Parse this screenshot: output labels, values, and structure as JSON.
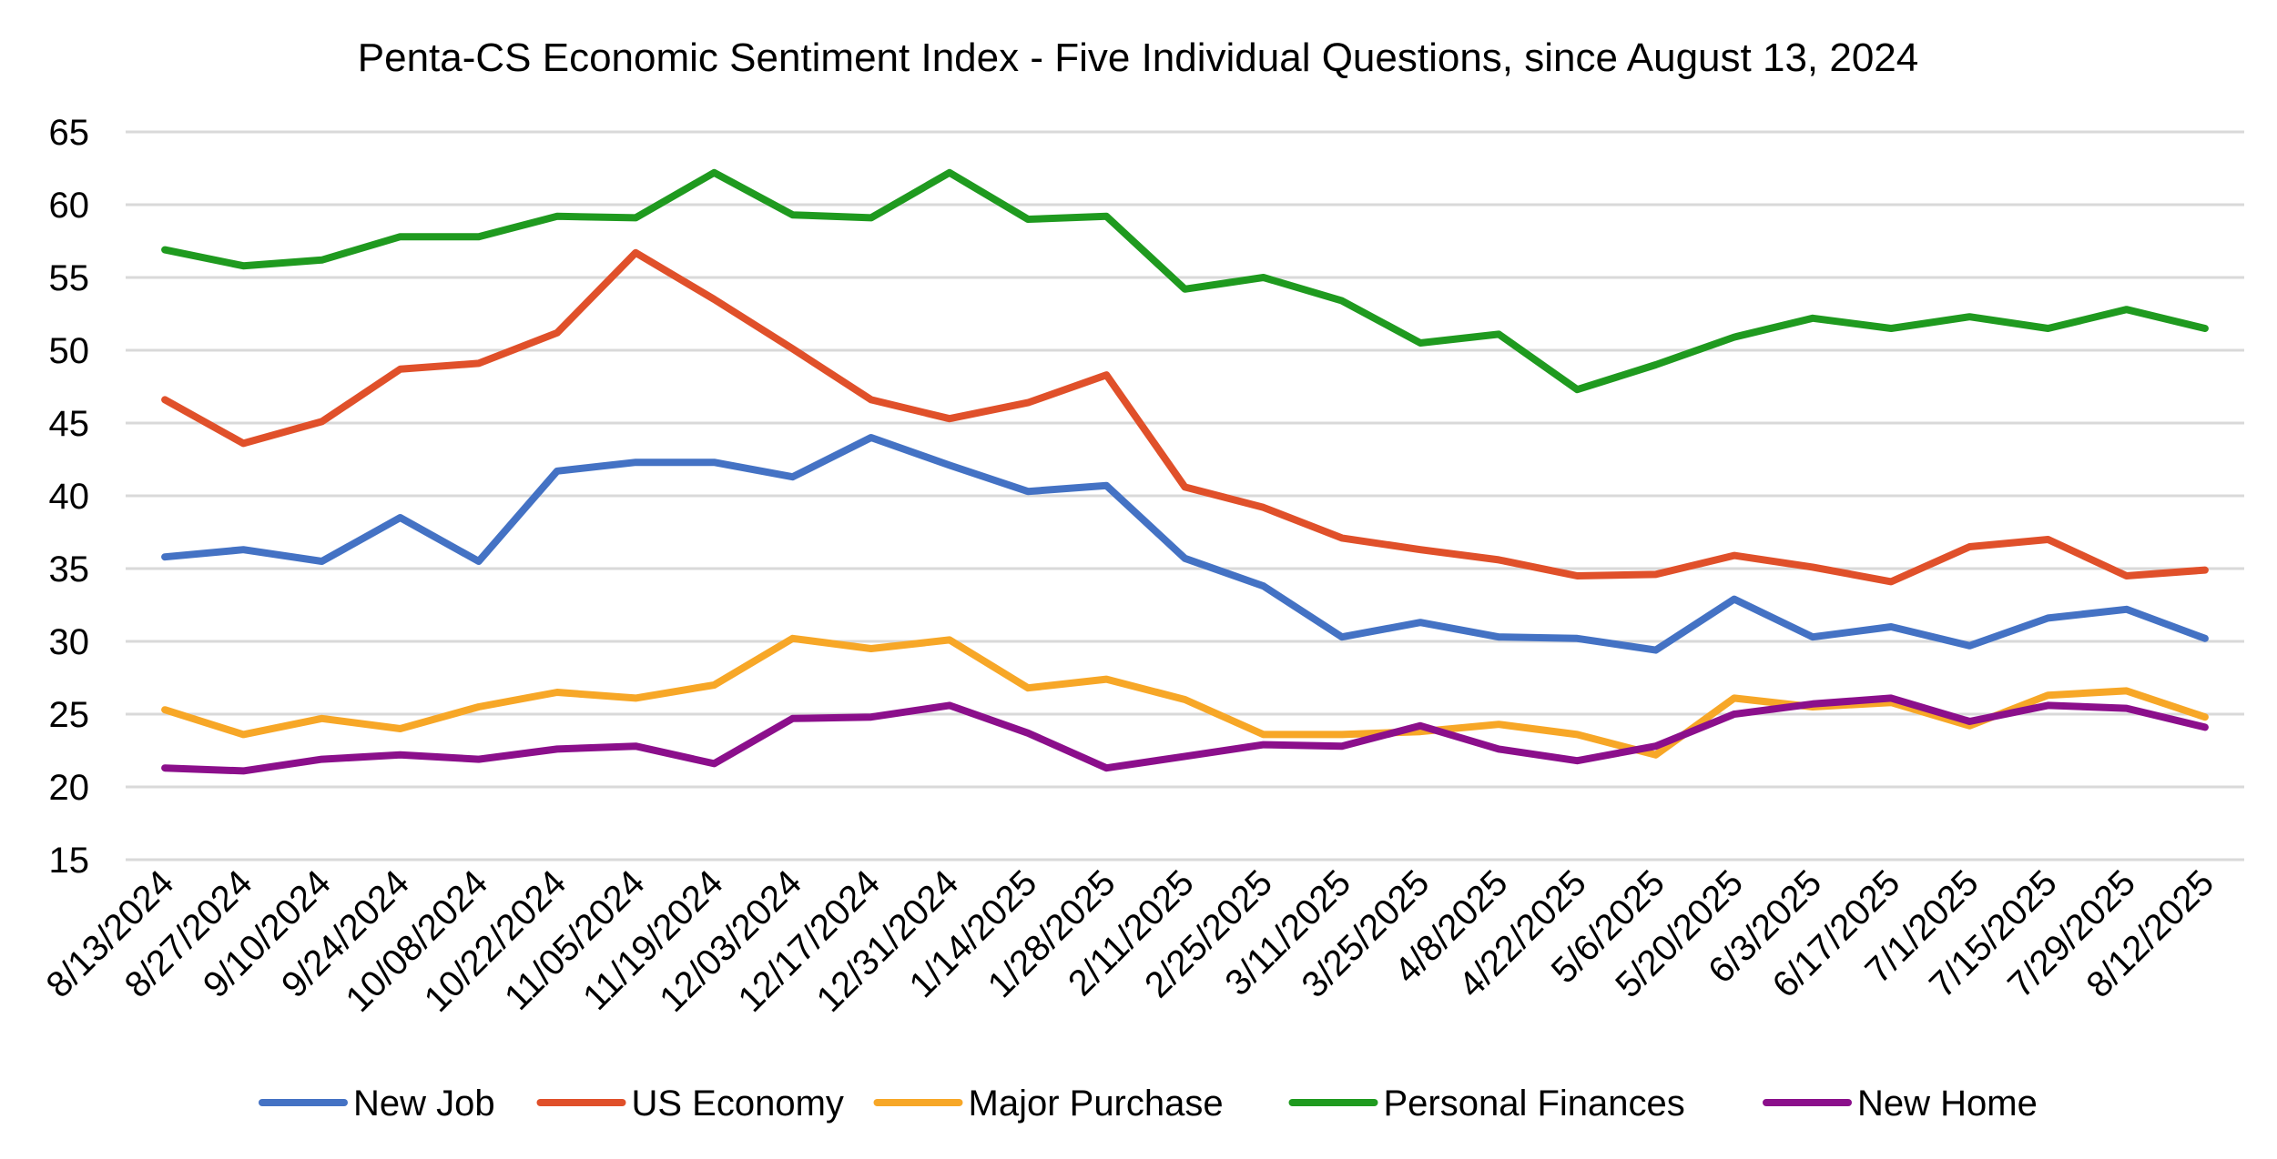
{
  "chart_data": {
    "type": "line",
    "title": "Penta-CS Economic Sentiment Index - Five Individual Questions, since August 13, 2024",
    "xlabel": "",
    "ylabel": "",
    "ylim": [
      15,
      65
    ],
    "yticks": [
      "15",
      "20",
      "25",
      "30",
      "35",
      "40",
      "45",
      "50",
      "55",
      "60",
      "65"
    ],
    "grid": true,
    "legend_position": "bottom",
    "categories": [
      "8/13/2024",
      "8/27/2024",
      "9/10/2024",
      "9/24/2024",
      "10/08/2024",
      "10/22/2024",
      "11/05/2024",
      "11/19/2024",
      "12/03/2024",
      "12/17/2024",
      "12/31/2024",
      "1/14/2025",
      "1/28/2025",
      "2/11/2025",
      "2/25/2025",
      "3/11/2025",
      "3/25/2025",
      "4/8/2025",
      "4/22/2025",
      "5/6/2025",
      "5/20/2025",
      "6/3/2025",
      "6/17/2025",
      "7/1/2025",
      "7/15/2025",
      "7/29/2025",
      "8/12/2025"
    ],
    "series": [
      {
        "name": "New Job",
        "color": "#4472c4",
        "values": [
          35.8,
          36.3,
          35.5,
          38.5,
          35.5,
          41.7,
          42.3,
          42.3,
          41.3,
          44.0,
          42.1,
          40.3,
          40.7,
          35.7,
          33.8,
          30.3,
          31.3,
          30.3,
          30.2,
          29.4,
          32.9,
          30.3,
          31.0,
          29.7,
          31.6,
          32.2,
          30.2
        ]
      },
      {
        "name": "US Economy",
        "color": "#e0502a",
        "values": [
          46.6,
          43.6,
          45.1,
          48.7,
          49.1,
          51.2,
          56.7,
          53.5,
          50.1,
          46.6,
          45.3,
          46.4,
          48.3,
          40.6,
          39.2,
          37.1,
          36.3,
          35.6,
          34.5,
          34.6,
          35.9,
          35.1,
          34.1,
          36.5,
          37.0,
          34.5,
          34.9
        ]
      },
      {
        "name": "Major Purchase",
        "color": "#f7a727",
        "values": [
          25.3,
          23.6,
          24.7,
          24.0,
          25.5,
          26.5,
          26.1,
          27.0,
          30.2,
          29.5,
          30.1,
          26.8,
          27.4,
          26.0,
          23.6,
          23.6,
          23.8,
          24.3,
          23.6,
          22.2,
          26.1,
          25.5,
          25.8,
          24.2,
          26.3,
          26.6,
          24.8
        ]
      },
      {
        "name": "Personal Finances",
        "color": "#1f9a1f",
        "values": [
          56.9,
          55.8,
          56.2,
          57.8,
          57.8,
          59.2,
          59.1,
          62.2,
          59.3,
          59.1,
          62.2,
          59.0,
          59.2,
          54.2,
          55.0,
          53.4,
          50.5,
          51.1,
          47.3,
          49.0,
          50.9,
          52.2,
          51.5,
          52.3,
          51.5,
          52.8,
          51.5
        ]
      },
      {
        "name": "New Home",
        "color": "#8b0f8b",
        "values": [
          21.3,
          21.1,
          21.9,
          22.2,
          21.9,
          22.6,
          22.8,
          21.6,
          24.7,
          24.8,
          25.6,
          23.7,
          21.3,
          22.1,
          22.9,
          22.8,
          24.2,
          22.6,
          21.8,
          22.8,
          25.0,
          25.7,
          26.1,
          24.5,
          25.6,
          25.4,
          24.1
        ]
      }
    ]
  }
}
